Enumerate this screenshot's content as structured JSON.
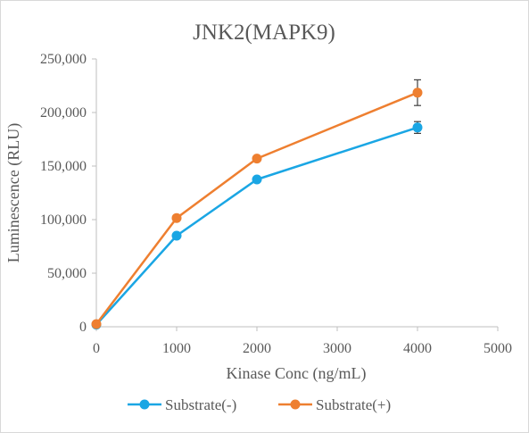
{
  "chart_data": {
    "type": "line",
    "title": "JNK2(MAPK9)",
    "xlabel": "Kinase Conc (ng/mL)",
    "ylabel": "Luminescence (RLU)",
    "xlim": [
      0,
      5000
    ],
    "ylim": [
      0,
      250000
    ],
    "x_ticks": [
      0,
      1000,
      2000,
      3000,
      4000,
      5000
    ],
    "x_tick_labels": [
      "0",
      "1000",
      "2000",
      "3000",
      "4000",
      "5000"
    ],
    "y_ticks": [
      0,
      50000,
      100000,
      150000,
      200000,
      250000
    ],
    "y_tick_labels": [
      "0",
      "50,000",
      "100,000",
      "150,000",
      "200,000",
      "250,000"
    ],
    "grid": false,
    "legend_position": "bottom",
    "x": [
      0,
      1000,
      2000,
      4000
    ],
    "series": [
      {
        "name": "Substrate(-)",
        "color": "#1aa6e4",
        "values": [
          2000,
          85000,
          137500,
          186000
        ],
        "errors": [
          500,
          1000,
          1500,
          5500
        ]
      },
      {
        "name": "Substrate(+)",
        "color": "#ee7f30",
        "values": [
          2500,
          101500,
          157000,
          218500
        ],
        "errors": [
          500,
          2000,
          1500,
          12000
        ]
      }
    ]
  }
}
